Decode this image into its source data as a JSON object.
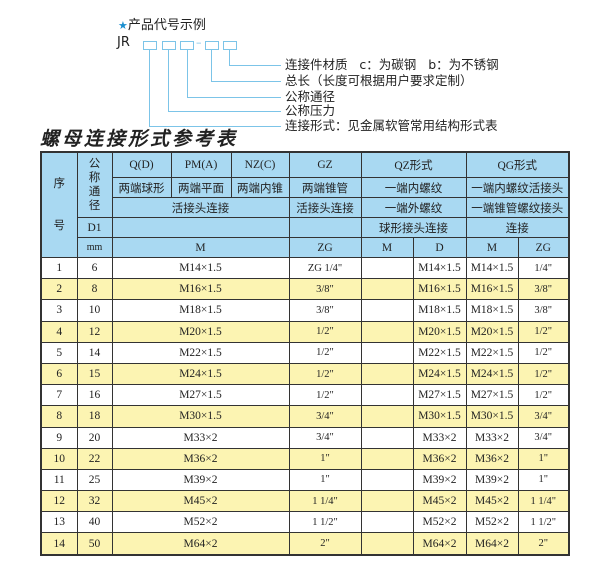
{
  "code_example": {
    "title": "产品代号示例",
    "star_icon": "star-icon",
    "prefix": "JR",
    "separator": "–",
    "labels": [
      "连接件材质   c：为碳钢   b：为不锈钢",
      "总长（长度可根据用户要求定制）",
      "公称通径",
      "公称压力",
      "连接形式：见金属软管常用结构形式表"
    ]
  },
  "table_title": "螺母连接形式参考表",
  "colors": {
    "header_bg": "#a9d9f2",
    "stripe": "#fcf4b2",
    "line": "#7cc4e8"
  },
  "header": {
    "seq": "序",
    "seq2": "号",
    "nominal": "公称通径",
    "d1": "D1",
    "mm": "mm",
    "qd": "Q(D)",
    "pm": "PM(A)",
    "nz": "NZ(C)",
    "gz": "GZ",
    "qz": "QZ形式",
    "qg": "QG形式",
    "qd_desc": "两端球形",
    "pm_desc": "两端平面",
    "nz_desc": "两端内锥",
    "gz_desc": "两端锥管",
    "qz_desc1": "一端内螺纹",
    "qg_desc1": "一端内螺纹活接头",
    "union": "活接头连接",
    "gz_union": "活接头连接",
    "qz_desc2": "一端外螺纹",
    "qg_desc2": "一端锥管螺纹接头",
    "qz_desc3": "球形接头连接",
    "qg_desc3": "连接",
    "m": "M",
    "zg": "ZG",
    "qz_m": "M",
    "qz_d": "D",
    "qg_m": "M",
    "qg_zg": "ZG"
  },
  "rows": [
    {
      "no": "1",
      "dn": "6",
      "m": "M14×1.5",
      "zg": "ZG 1/4\"",
      "qz_m": "",
      "qz_d": "M14×1.5",
      "qg_m": "M14×1.5",
      "qg_zg": "1/4\""
    },
    {
      "no": "2",
      "dn": "8",
      "m": "M16×1.5",
      "zg": "3/8\"",
      "qz_m": "",
      "qz_d": "M16×1.5",
      "qg_m": "M16×1.5",
      "qg_zg": "3/8\""
    },
    {
      "no": "3",
      "dn": "10",
      "m": "M18×1.5",
      "zg": "3/8\"",
      "qz_m": "",
      "qz_d": "M18×1.5",
      "qg_m": "M18×1.5",
      "qg_zg": "3/8\""
    },
    {
      "no": "4",
      "dn": "12",
      "m": "M20×1.5",
      "zg": "1/2\"",
      "qz_m": "",
      "qz_d": "M20×1.5",
      "qg_m": "M20×1.5",
      "qg_zg": "1/2\""
    },
    {
      "no": "5",
      "dn": "14",
      "m": "M22×1.5",
      "zg": "1/2\"",
      "qz_m": "",
      "qz_d": "M22×1.5",
      "qg_m": "M22×1.5",
      "qg_zg": "1/2\""
    },
    {
      "no": "6",
      "dn": "15",
      "m": "M24×1.5",
      "zg": "1/2\"",
      "qz_m": "",
      "qz_d": "M24×1.5",
      "qg_m": "M24×1.5",
      "qg_zg": "1/2\""
    },
    {
      "no": "7",
      "dn": "16",
      "m": "M27×1.5",
      "zg": "1/2\"",
      "qz_m": "",
      "qz_d": "M27×1.5",
      "qg_m": "M27×1.5",
      "qg_zg": "1/2\""
    },
    {
      "no": "8",
      "dn": "18",
      "m": "M30×1.5",
      "zg": "3/4\"",
      "qz_m": "",
      "qz_d": "M30×1.5",
      "qg_m": "M30×1.5",
      "qg_zg": "3/4\""
    },
    {
      "no": "9",
      "dn": "20",
      "m": "M33×2",
      "zg": "3/4\"",
      "qz_m": "",
      "qz_d": "M33×2",
      "qg_m": "M33×2",
      "qg_zg": "3/4\""
    },
    {
      "no": "10",
      "dn": "22",
      "m": "M36×2",
      "zg": "1\"",
      "qz_m": "",
      "qz_d": "M36×2",
      "qg_m": "M36×2",
      "qg_zg": "1\""
    },
    {
      "no": "11",
      "dn": "25",
      "m": "M39×2",
      "zg": "1\"",
      "qz_m": "",
      "qz_d": "M39×2",
      "qg_m": "M39×2",
      "qg_zg": "1\""
    },
    {
      "no": "12",
      "dn": "32",
      "m": "M45×2",
      "zg": "1 1/4\"",
      "qz_m": "",
      "qz_d": "M45×2",
      "qg_m": "M45×2",
      "qg_zg": "1 1/4\""
    },
    {
      "no": "13",
      "dn": "40",
      "m": "M52×2",
      "zg": "1 1/2\"",
      "qz_m": "",
      "qz_d": "M52×2",
      "qg_m": "M52×2",
      "qg_zg": "1 1/2\""
    },
    {
      "no": "14",
      "dn": "50",
      "m": "M64×2",
      "zg": "2\"",
      "qz_m": "",
      "qz_d": "M64×2",
      "qg_m": "M64×2",
      "qg_zg": "2\""
    }
  ]
}
